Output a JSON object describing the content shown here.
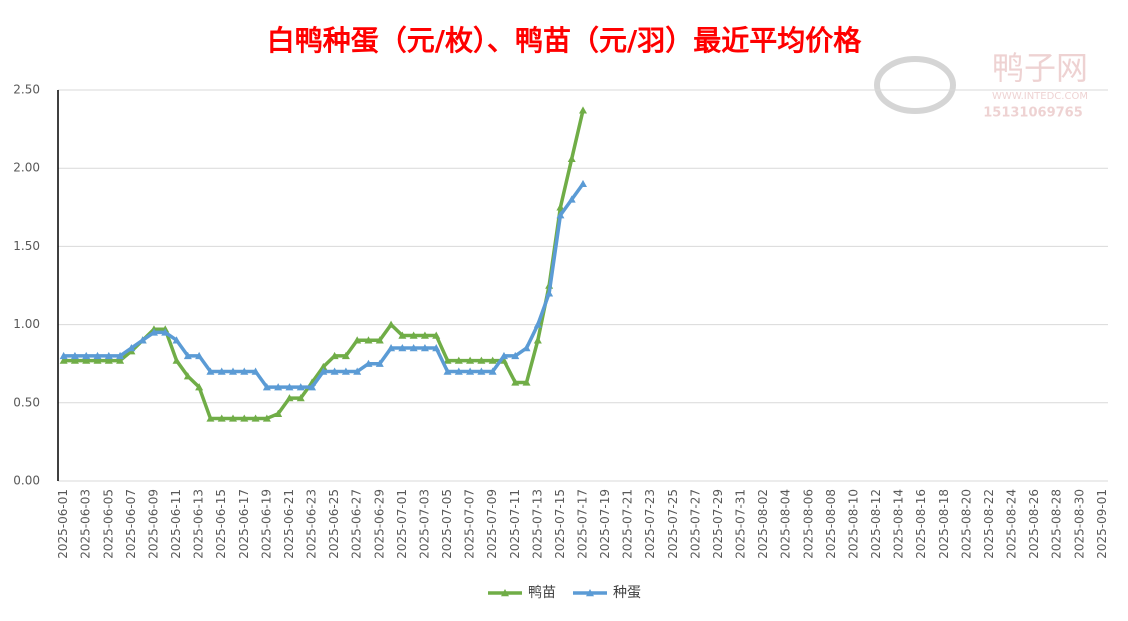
{
  "chart_data": {
    "type": "line",
    "title": "白鸭种蛋（元/枚）、鸭苗（元/羽）最近平均价格",
    "watermark": {
      "name": "鸭子网",
      "url": "WWW.INTEDC.COM",
      "phone": "15131069765"
    },
    "categories": [
      "2025-06-01",
      null,
      "2025-06-03",
      null,
      "2025-06-05",
      null,
      "2025-06-07",
      null,
      "2025-06-09",
      null,
      "2025-06-11",
      null,
      "2025-06-13",
      null,
      "2025-06-15",
      null,
      "2025-06-17",
      null,
      "2025-06-19",
      null,
      "2025-06-21",
      null,
      "2025-06-23",
      null,
      "2025-06-25",
      null,
      "2025-06-27",
      null,
      "2025-06-29",
      null,
      "2025-07-01",
      null,
      "2025-07-03",
      null,
      "2025-07-05",
      null,
      "2025-07-07",
      null,
      "2025-07-09",
      null,
      "2025-07-11",
      null,
      "2025-07-13",
      null,
      "2025-07-15",
      null,
      "2025-07-17",
      null,
      "2025-07-19",
      null,
      "2025-07-21",
      null,
      "2025-07-23",
      null,
      "2025-07-25",
      null,
      "2025-07-27",
      null,
      "2025-07-29",
      null,
      "2025-07-31",
      null,
      "2025-08-02",
      null,
      "2025-08-04",
      null,
      "2025-08-06",
      null,
      "2025-08-08",
      null,
      "2025-08-10",
      null,
      "2025-08-12",
      null,
      "2025-08-14",
      null,
      "2025-08-16",
      null,
      "2025-08-18",
      null,
      "2025-08-20",
      null,
      "2025-08-22",
      null,
      "2025-08-24",
      null,
      "2025-08-26",
      null,
      "2025-08-28",
      null,
      "2025-08-30",
      null,
      "2025-09-01"
    ],
    "series": [
      {
        "name": "鸭苗",
        "color": "#70ad47",
        "values": [
          0.77,
          0.77,
          0.77,
          0.77,
          0.77,
          0.77,
          0.83,
          0.9,
          0.97,
          0.97,
          0.77,
          0.67,
          0.6,
          0.4,
          0.4,
          0.4,
          0.4,
          0.4,
          0.4,
          0.43,
          0.53,
          0.53,
          0.63,
          0.73,
          0.8,
          0.8,
          0.9,
          0.9,
          0.9,
          1.0,
          0.93,
          0.93,
          0.93,
          0.93,
          0.77,
          0.77,
          0.77,
          0.77,
          0.77,
          0.77,
          0.63,
          0.63,
          0.9,
          1.25,
          1.75,
          2.06,
          2.37,
          null,
          null,
          null,
          null,
          null,
          null,
          null,
          null,
          null,
          null,
          null,
          null,
          null,
          null,
          null,
          null,
          null,
          null,
          null,
          null,
          null,
          null,
          null,
          null,
          null,
          null,
          null,
          null,
          null,
          null,
          null,
          null,
          null,
          null,
          null,
          null,
          null,
          null,
          null,
          null,
          null,
          null,
          null,
          null,
          null,
          null
        ]
      },
      {
        "name": "种蛋",
        "color": "#5b9bd5",
        "values": [
          0.8,
          0.8,
          0.8,
          0.8,
          0.8,
          0.8,
          0.85,
          0.9,
          0.95,
          0.95,
          0.9,
          0.8,
          0.8,
          0.7,
          0.7,
          0.7,
          0.7,
          0.7,
          0.6,
          0.6,
          0.6,
          0.6,
          0.6,
          0.7,
          0.7,
          0.7,
          0.7,
          0.75,
          0.75,
          0.85,
          0.85,
          0.85,
          0.85,
          0.85,
          0.7,
          0.7,
          0.7,
          0.7,
          0.7,
          0.8,
          0.8,
          0.85,
          1.0,
          1.2,
          1.7,
          1.8,
          1.9,
          null,
          null,
          null,
          null,
          null,
          null,
          null,
          null,
          null,
          null,
          null,
          null,
          null,
          null,
          null,
          null,
          null,
          null,
          null,
          null,
          null,
          null,
          null,
          null,
          null,
          null,
          null,
          null,
          null,
          null,
          null,
          null,
          null,
          null,
          null,
          null,
          null,
          null,
          null,
          null,
          null,
          null,
          null,
          null,
          null,
          null
        ]
      }
    ],
    "ylim": [
      0,
      2.5
    ],
    "yticks": [
      {
        "value": 0,
        "label": "0.00"
      },
      {
        "value": 0.5,
        "label": "0.50"
      },
      {
        "value": 1,
        "label": "1.00"
      },
      {
        "value": 1.5,
        "label": "1.50"
      },
      {
        "value": 2,
        "label": "2.00"
      },
      {
        "value": 2.5,
        "label": "2.50"
      }
    ],
    "grid": true,
    "legend": "bottom"
  }
}
